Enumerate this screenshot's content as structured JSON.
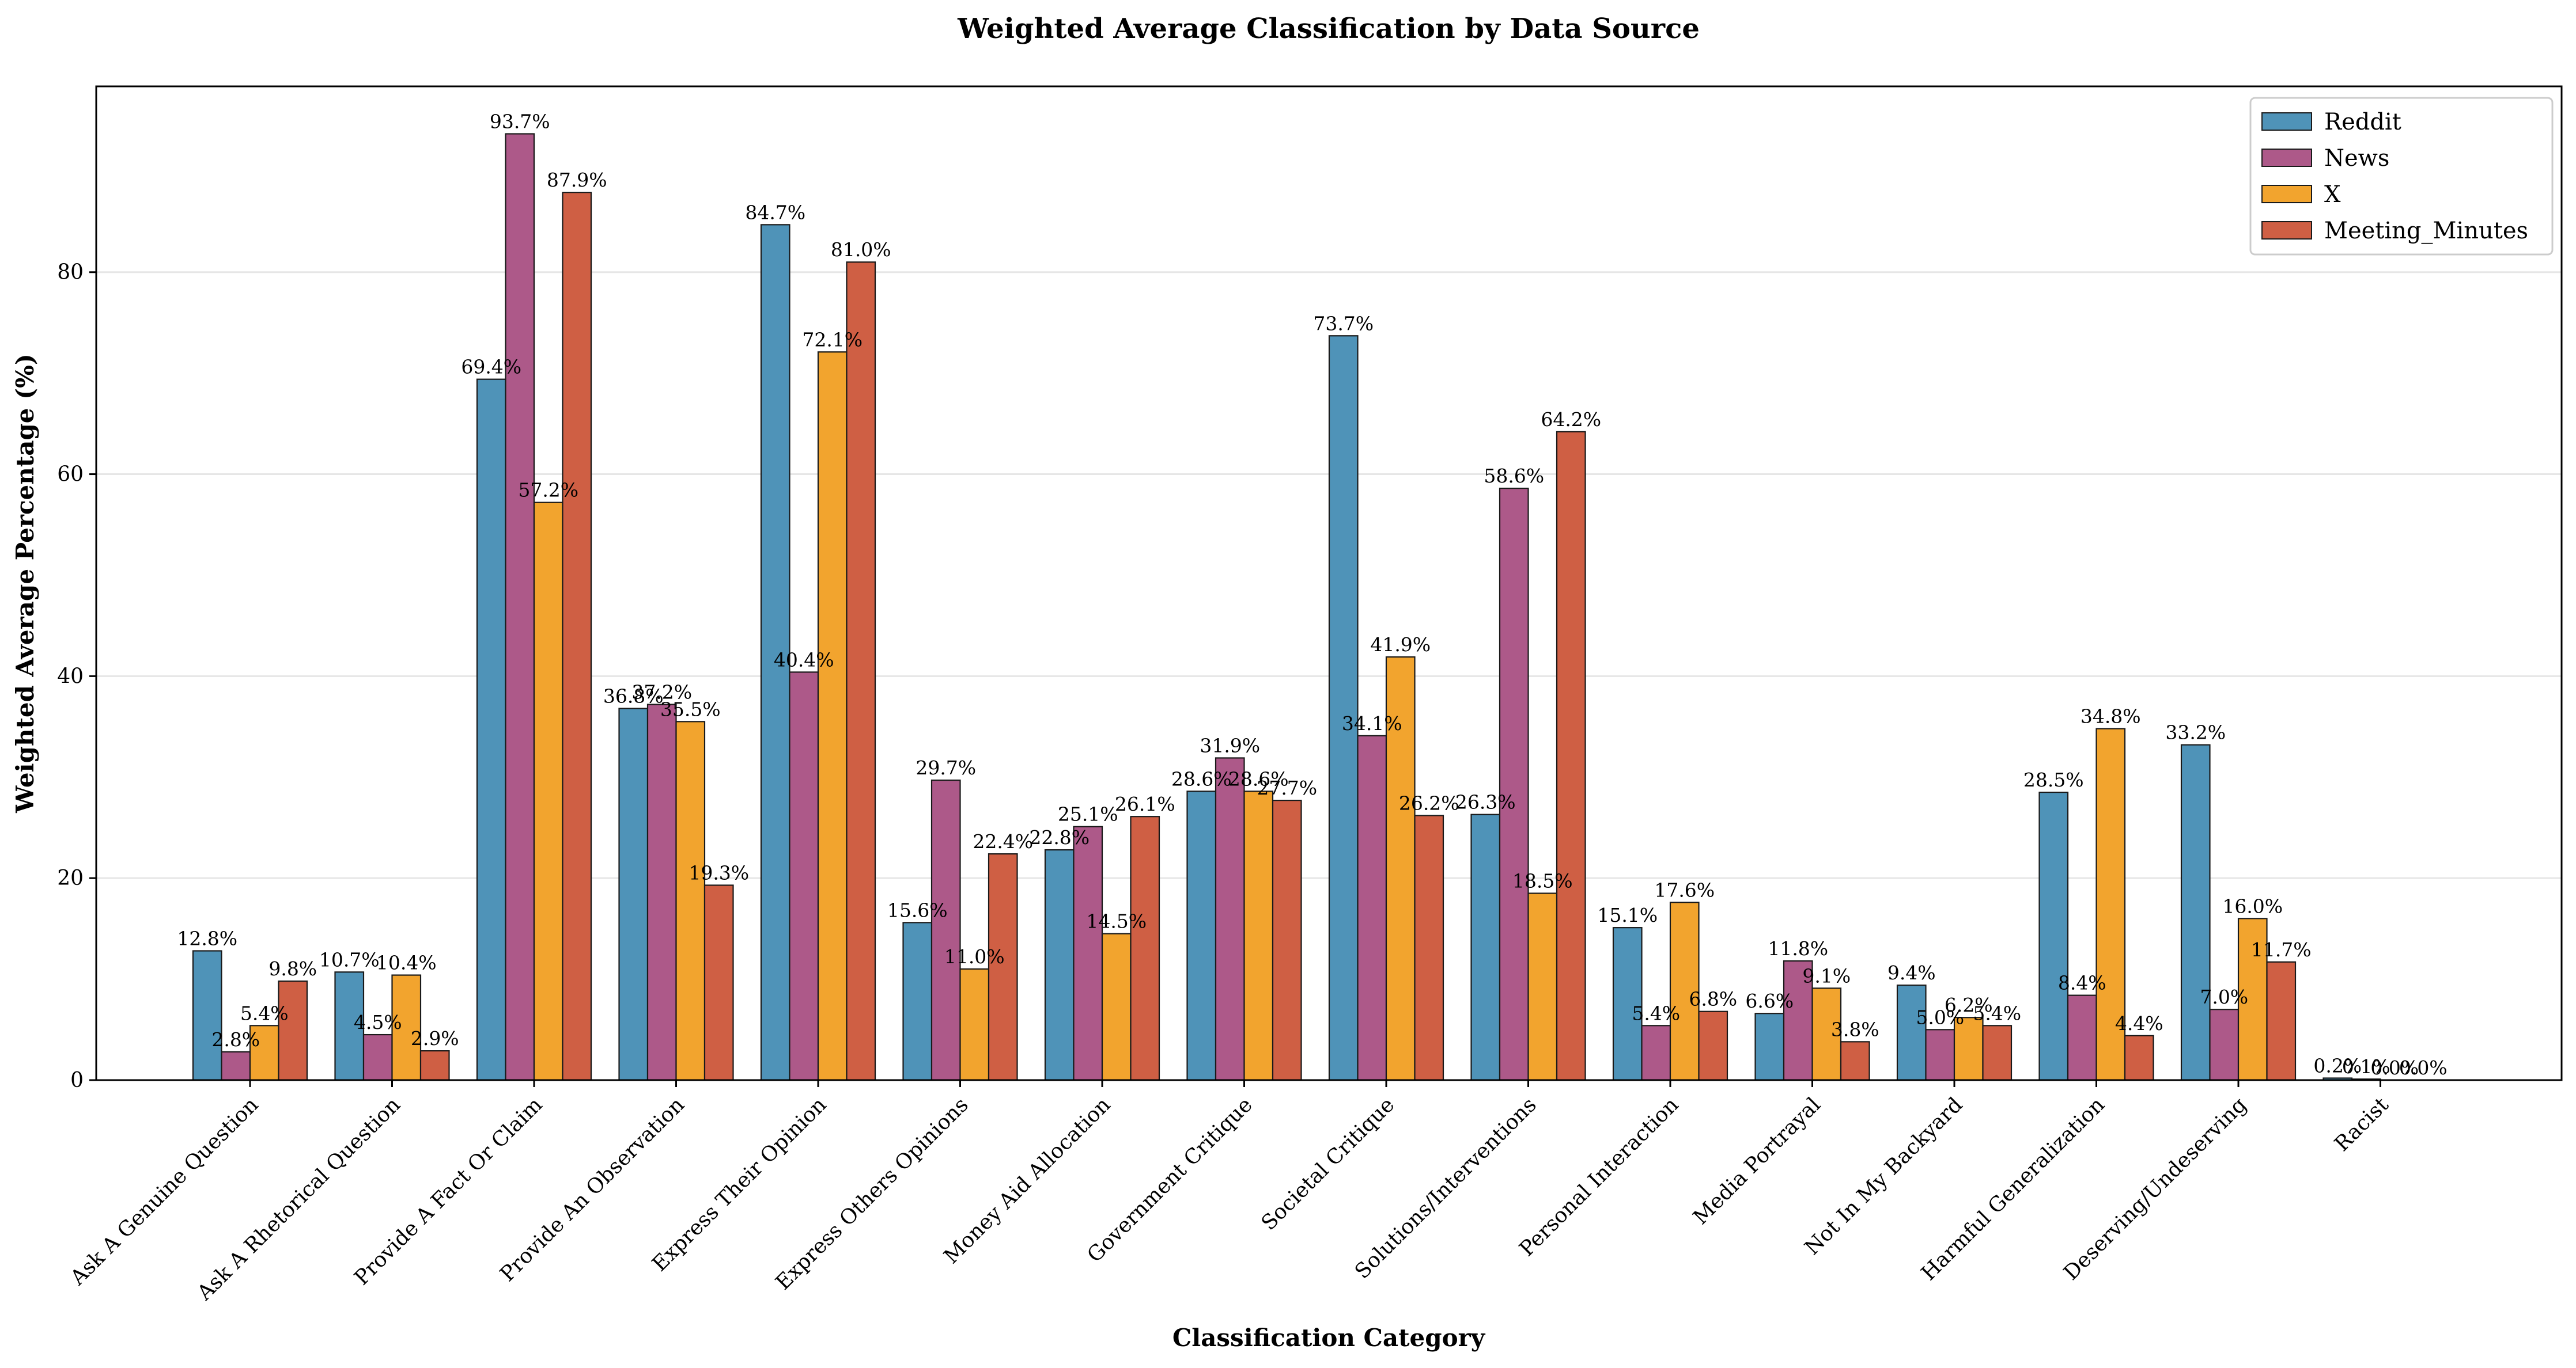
{
  "chart_data": {
    "type": "bar",
    "title": "Weighted Average Classification by Data Source",
    "xlabel": "Classification Category",
    "ylabel": "Weighted Average Percentage (%)",
    "ylim": [
      0,
      98.4
    ],
    "yticks": [
      0,
      20,
      40,
      60,
      80
    ],
    "grid": "horizontal",
    "legend_position": "top-right",
    "value_label_suffix": "%",
    "categories": [
      "Ask A Genuine Question",
      "Ask A Rhetorical Question",
      "Provide A Fact Or Claim",
      "Provide An Observation",
      "Express Their Opinion",
      "Express Others Opinions",
      "Money Aid Allocation",
      "Government Critique",
      "Societal Critique",
      "Solutions/Interventions",
      "Personal Interaction",
      "Media Portrayal",
      "Not In My Backyard",
      "Harmful Generalization",
      "Deserving/Undeserving",
      "Racist"
    ],
    "series": [
      {
        "name": "Reddit",
        "color": "#4f93b8",
        "values": [
          12.8,
          10.7,
          69.4,
          36.8,
          84.7,
          15.6,
          22.8,
          28.6,
          73.7,
          26.3,
          15.1,
          6.6,
          9.4,
          28.5,
          33.2,
          0.2
        ]
      },
      {
        "name": "News",
        "color": "#ad5989",
        "values": [
          2.8,
          4.5,
          93.7,
          37.2,
          40.4,
          29.7,
          25.1,
          31.9,
          34.1,
          58.6,
          5.4,
          11.8,
          5.0,
          8.4,
          7.0,
          0.1
        ]
      },
      {
        "name": "X",
        "color": "#f2a42e",
        "values": [
          5.4,
          10.4,
          57.2,
          35.5,
          72.1,
          11.0,
          14.5,
          28.6,
          41.9,
          18.5,
          17.6,
          9.1,
          6.2,
          34.8,
          16.0,
          0.0
        ]
      },
      {
        "name": "Meeting_Minutes",
        "color": "#cf5f44",
        "values": [
          9.8,
          2.9,
          87.9,
          19.3,
          81.0,
          22.4,
          26.1,
          27.7,
          26.2,
          64.2,
          6.8,
          3.8,
          5.4,
          4.4,
          11.7,
          0.0
        ]
      }
    ]
  }
}
